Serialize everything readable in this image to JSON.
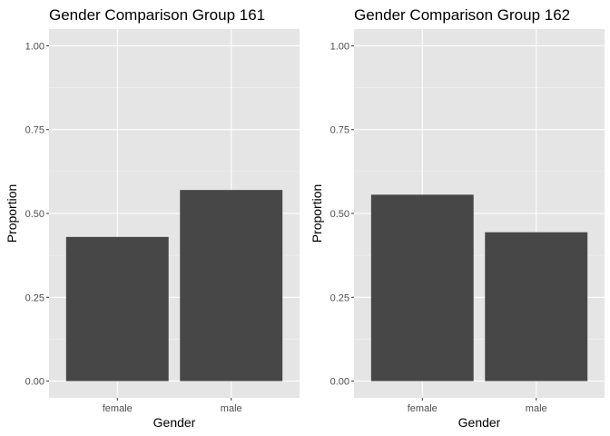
{
  "chart_data": [
    {
      "type": "bar",
      "title": "Gender Comparison Group 161",
      "xlabel": "Gender",
      "ylabel": "Proportion",
      "categories": [
        "female",
        "male"
      ],
      "values": [
        0.43,
        0.57
      ],
      "ylim": [
        0,
        1
      ],
      "yticks": [
        "0.00",
        "0.25",
        "0.50",
        "0.75",
        "1.00"
      ],
      "grid": true,
      "legend": "none",
      "bar_color": "#474747",
      "panel_bg": "#e5e5e5"
    },
    {
      "type": "bar",
      "title": "Gender Comparison Group 162",
      "xlabel": "Gender",
      "ylabel": "Proportion",
      "categories": [
        "female",
        "male"
      ],
      "values": [
        0.556,
        0.444
      ],
      "ylim": [
        0,
        1
      ],
      "yticks": [
        "0.00",
        "0.25",
        "0.50",
        "0.75",
        "1.00"
      ],
      "grid": true,
      "legend": "none",
      "bar_color": "#474747",
      "panel_bg": "#e5e5e5"
    }
  ]
}
